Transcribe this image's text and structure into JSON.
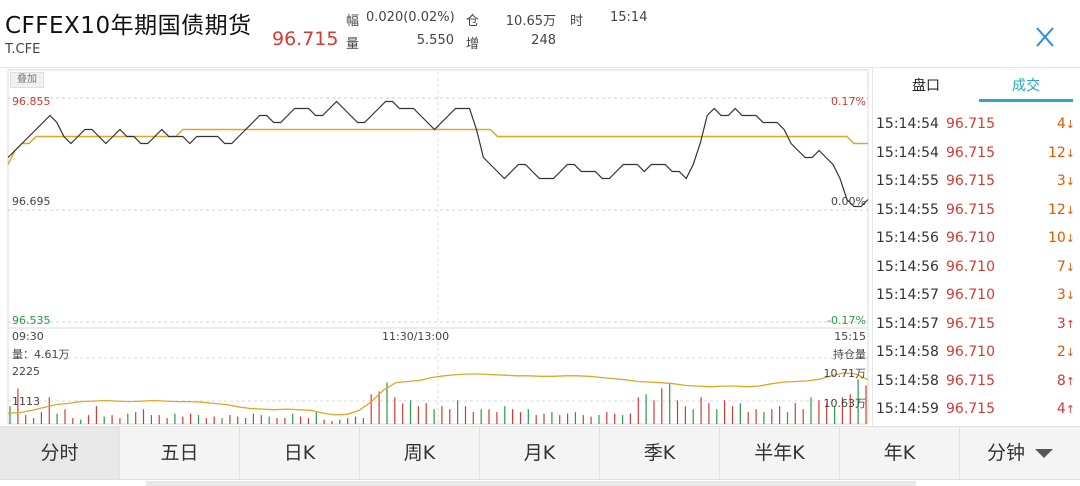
{
  "header": {
    "title": "CFFEX10年期国债期货",
    "code": "T.CFE",
    "price": "96.715",
    "stats": {
      "fu_label": "幅",
      "fu_value": "0.020(0.02%)",
      "cang_label": "仓",
      "cang_value": "10.65万",
      "shi_label": "时",
      "shi_value": "15:14",
      "liang_label": "量",
      "liang_value": "5.550",
      "zeng_label": "增",
      "zeng_value": "248"
    }
  },
  "chart": {
    "overlay_label": "叠加",
    "price_high": "96.855",
    "price_mid": "96.695",
    "price_low": "96.535",
    "pct_high": "0.17%",
    "pct_mid": "0.00%",
    "pct_low": "-0.17%",
    "time_start": "09:30",
    "time_mid": "11:30/13:00",
    "time_end": "15:15",
    "volume_label": "量：4.61万",
    "vol_tick_high": "2225",
    "vol_tick_low": "1113",
    "oi_label": "持仓量",
    "oi_high": "10.71万",
    "oi_low": "10.63万",
    "colors": {
      "price_line": "#333333",
      "avg_line": "#e0a628",
      "up": "#d33a33",
      "down": "#2a9a45"
    }
  },
  "chart_data": {
    "type": "line",
    "price_range": [
      96.535,
      96.855
    ],
    "base_price": 96.695,
    "price_series": [
      96.77,
      96.78,
      96.79,
      96.8,
      96.81,
      96.82,
      96.83,
      96.82,
      96.8,
      96.79,
      96.8,
      96.81,
      96.81,
      96.8,
      96.79,
      96.8,
      96.81,
      96.8,
      96.8,
      96.79,
      96.79,
      96.8,
      96.81,
      96.8,
      96.8,
      96.8,
      96.79,
      96.8,
      96.8,
      96.8,
      96.8,
      96.79,
      96.79,
      96.8,
      96.81,
      96.82,
      96.83,
      96.83,
      96.82,
      96.82,
      96.83,
      96.84,
      96.84,
      96.84,
      96.83,
      96.83,
      96.84,
      96.85,
      96.84,
      96.83,
      96.82,
      96.82,
      96.83,
      96.84,
      96.85,
      96.85,
      96.84,
      96.84,
      96.84,
      96.83,
      96.82,
      96.81,
      96.82,
      96.83,
      96.84,
      96.84,
      96.84,
      96.81,
      96.77,
      96.76,
      96.75,
      96.74,
      96.75,
      96.76,
      96.76,
      96.75,
      96.74,
      96.74,
      96.74,
      96.75,
      96.76,
      96.76,
      96.75,
      96.75,
      96.75,
      96.74,
      96.74,
      96.75,
      96.76,
      96.76,
      96.76,
      96.75,
      96.76,
      96.76,
      96.76,
      96.75,
      96.75,
      96.74,
      96.76,
      96.79,
      96.83,
      96.84,
      96.83,
      96.83,
      96.84,
      96.83,
      96.83,
      96.83,
      96.82,
      96.82,
      96.82,
      96.81,
      96.79,
      96.78,
      96.77,
      96.77,
      96.78,
      96.77,
      96.76,
      96.74,
      96.71,
      96.7,
      96.7,
      96.71
    ],
    "avg_series": [
      96.76,
      96.78,
      96.79,
      96.79,
      96.8,
      96.8,
      96.8,
      96.8,
      96.8,
      96.8,
      96.8,
      96.8,
      96.8,
      96.8,
      96.8,
      96.8,
      96.8,
      96.8,
      96.8,
      96.8,
      96.8,
      96.8,
      96.8,
      96.8,
      96.8,
      96.81,
      96.81,
      96.81,
      96.81,
      96.81,
      96.81,
      96.81,
      96.81,
      96.81,
      96.81,
      96.81,
      96.81,
      96.81,
      96.81,
      96.81,
      96.81,
      96.81,
      96.81,
      96.81,
      96.81,
      96.81,
      96.81,
      96.81,
      96.81,
      96.81,
      96.81,
      96.81,
      96.81,
      96.81,
      96.81,
      96.81,
      96.81,
      96.81,
      96.81,
      96.81,
      96.81,
      96.81,
      96.81,
      96.81,
      96.81,
      96.81,
      96.81,
      96.81,
      96.81,
      96.81,
      96.8,
      96.8,
      96.8,
      96.8,
      96.8,
      96.8,
      96.8,
      96.8,
      96.8,
      96.8,
      96.8,
      96.8,
      96.8,
      96.8,
      96.8,
      96.8,
      96.8,
      96.8,
      96.8,
      96.8,
      96.8,
      96.8,
      96.8,
      96.8,
      96.8,
      96.8,
      96.8,
      96.8,
      96.8,
      96.8,
      96.8,
      96.8,
      96.8,
      96.8,
      96.8,
      96.8,
      96.8,
      96.8,
      96.8,
      96.8,
      96.8,
      96.8,
      96.8,
      96.8,
      96.8,
      96.8,
      96.8,
      96.8,
      96.8,
      96.8,
      96.8,
      96.79,
      96.79,
      96.79
    ],
    "oi_range": [
      10.63,
      10.71
    ],
    "oi_series": [
      10.635,
      10.636,
      10.64,
      10.645,
      10.65,
      10.652,
      10.655,
      10.656,
      10.657,
      10.656,
      10.655,
      10.656,
      10.657,
      10.656,
      10.655,
      10.655,
      10.654,
      10.652,
      10.65,
      10.646,
      10.643,
      10.642,
      10.641,
      10.642,
      10.641,
      10.64,
      10.635,
      10.632,
      10.633,
      10.64,
      10.655,
      10.675,
      10.688,
      10.69,
      10.692,
      10.697,
      10.7,
      10.702,
      10.703,
      10.703,
      10.702,
      10.701,
      10.7,
      10.7,
      10.699,
      10.699,
      10.7,
      10.7,
      10.699,
      10.697,
      10.695,
      10.693,
      10.69,
      10.689,
      10.688,
      10.686,
      10.683,
      10.682,
      10.681,
      10.682,
      10.682,
      10.681,
      10.682,
      10.686,
      10.689,
      10.69,
      10.691,
      10.694,
      10.7,
      10.705,
      10.703,
      10.693
    ],
    "volume_range": [
      0,
      2225
    ],
    "volume_series": [
      600,
      1200,
      300,
      200,
      400,
      900,
      350,
      500,
      200,
      150,
      300,
      600,
      250,
      300,
      200,
      350,
      400,
      500,
      300,
      300,
      200,
      350,
      250,
      350,
      300,
      200,
      250,
      200,
      300,
      250,
      200,
      350,
      300,
      250,
      200,
      200,
      350,
      250,
      200,
      400,
      150,
      100,
      150,
      200,
      250,
      200,
      1000,
      1100,
      1400,
      900,
      700,
      800,
      600,
      700,
      500,
      600,
      500,
      800,
      600,
      400,
      500,
      500,
      400,
      600,
      500,
      400,
      500,
      300,
      350,
      400,
      300,
      350,
      400,
      300,
      250,
      300,
      400,
      350,
      300,
      350,
      900,
      1000,
      800,
      1200,
      1400,
      800,
      600,
      500,
      900,
      700,
      500,
      800,
      600,
      700,
      400,
      500,
      400,
      500,
      600,
      400,
      700,
      500,
      900,
      800,
      700,
      600,
      900,
      1000,
      1500,
      1300
    ]
  },
  "trades": {
    "tab_pankou": "盘口",
    "tab_chengjiao": "成交",
    "rows": [
      {
        "time": "15:14:54",
        "price": "96.715",
        "vol": "4",
        "dir": "↓"
      },
      {
        "time": "15:14:54",
        "price": "96.715",
        "vol": "12",
        "dir": "↓"
      },
      {
        "time": "15:14:55",
        "price": "96.715",
        "vol": "3",
        "dir": "↓"
      },
      {
        "time": "15:14:55",
        "price": "96.715",
        "vol": "12",
        "dir": "↓"
      },
      {
        "time": "15:14:56",
        "price": "96.710",
        "vol": "10",
        "dir": "↓"
      },
      {
        "time": "15:14:56",
        "price": "96.710",
        "vol": "7",
        "dir": "↓"
      },
      {
        "time": "15:14:57",
        "price": "96.710",
        "vol": "3",
        "dir": "↓"
      },
      {
        "time": "15:14:57",
        "price": "96.715",
        "vol": "3",
        "dir": "↑"
      },
      {
        "time": "15:14:58",
        "price": "96.710",
        "vol": "2",
        "dir": "↓"
      },
      {
        "time": "15:14:58",
        "price": "96.715",
        "vol": "8",
        "dir": "↑"
      },
      {
        "time": "15:14:59",
        "price": "96.715",
        "vol": "4",
        "dir": "↑"
      }
    ]
  },
  "tabs": [
    {
      "label": "分时"
    },
    {
      "label": "五日"
    },
    {
      "label": "日K"
    },
    {
      "label": "周K"
    },
    {
      "label": "月K"
    },
    {
      "label": "季K"
    },
    {
      "label": "半年K"
    },
    {
      "label": "年K"
    },
    {
      "label": "分钟"
    }
  ]
}
